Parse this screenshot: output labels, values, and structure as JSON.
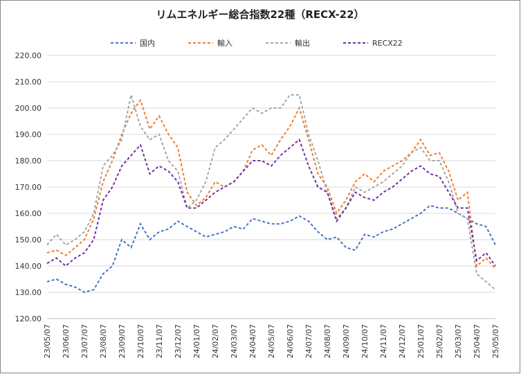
{
  "chart_data": {
    "type": "line",
    "title": "リムエネルギー総合指数22種（RECX-22）",
    "categories": [
      "23/05/07",
      null,
      "23/06/07",
      null,
      "23/07/07",
      null,
      "23/08/07",
      null,
      "23/09/07",
      null,
      "23/10/07",
      null,
      "23/11/07",
      null,
      "23/12/07",
      null,
      "24/01/07",
      null,
      "24/02/07",
      null,
      "24/03/07",
      null,
      "24/04/07",
      null,
      "24/05/07",
      null,
      "24/06/07",
      null,
      "24/07/07",
      null,
      "24/08/07",
      null,
      "24/09/07",
      null,
      "24/10/07",
      null,
      "24/11/07",
      null,
      "24/12/07",
      null,
      "25/01/07",
      null,
      "25/02/07",
      null,
      "25/03/07",
      null,
      "25/04/07",
      null,
      "25/05/07"
    ],
    "series": [
      {
        "name": "国内",
        "color": "#4472c4",
        "values": [
          134,
          135,
          133,
          132,
          130,
          131,
          137,
          140,
          150,
          147,
          156,
          150,
          153,
          154,
          157,
          155,
          153,
          151,
          152,
          153,
          155,
          154,
          158,
          157,
          156,
          156,
          157,
          159,
          157,
          153,
          150,
          151,
          147,
          146,
          152,
          151,
          153,
          154,
          156,
          158,
          160,
          163,
          162,
          162,
          160,
          158,
          156,
          155,
          148
        ]
      },
      {
        "name": "輸入",
        "color": "#ed7d31",
        "values": [
          145,
          146,
          144,
          147,
          150,
          158,
          172,
          180,
          190,
          198,
          203,
          192,
          197,
          190,
          185,
          168,
          163,
          166,
          172,
          170,
          172,
          176,
          184,
          186,
          182,
          188,
          193,
          200,
          188,
          175,
          170,
          160,
          165,
          172,
          175,
          172,
          176,
          178,
          180,
          183,
          188,
          182,
          183,
          176,
          165,
          168,
          140,
          143,
          139
        ]
      },
      {
        "name": "輸出",
        "color": "#a5a5a5",
        "values": [
          148,
          152,
          148,
          150,
          153,
          160,
          178,
          182,
          188,
          205,
          193,
          188,
          190,
          180,
          176,
          162,
          165,
          172,
          185,
          188,
          192,
          196,
          200,
          198,
          200,
          200,
          205,
          205,
          190,
          180,
          168,
          158,
          162,
          170,
          168,
          170,
          172,
          175,
          178,
          183,
          185,
          180,
          180,
          172,
          160,
          158,
          137,
          134,
          131
        ]
      },
      {
        "name": "RECX22",
        "color": "#7030a0",
        "values": [
          141,
          143,
          140,
          143,
          145,
          150,
          165,
          170,
          178,
          182,
          186,
          175,
          178,
          176,
          172,
          162,
          162,
          165,
          168,
          170,
          172,
          176,
          180,
          180,
          178,
          182,
          185,
          188,
          178,
          170,
          168,
          157,
          162,
          168,
          166,
          165,
          168,
          170,
          173,
          176,
          178,
          175,
          174,
          168,
          162,
          162,
          142,
          145,
          140
        ]
      }
    ],
    "ylim": [
      120,
      220
    ],
    "yticks": [
      {
        "value": 120,
        "label": "120.00"
      },
      {
        "value": 130,
        "label": "130.00"
      },
      {
        "value": 140,
        "label": "140.00"
      },
      {
        "value": 150,
        "label": "150.00"
      },
      {
        "value": 160,
        "label": "160.00"
      },
      {
        "value": 170,
        "label": "170.00"
      },
      {
        "value": 180,
        "label": "180.00"
      },
      {
        "value": 190,
        "label": "190.00"
      },
      {
        "value": 200,
        "label": "200.00"
      },
      {
        "value": 210,
        "label": "210.00"
      },
      {
        "value": 220,
        "label": "220.00"
      }
    ],
    "grid": true,
    "legend": "top"
  }
}
